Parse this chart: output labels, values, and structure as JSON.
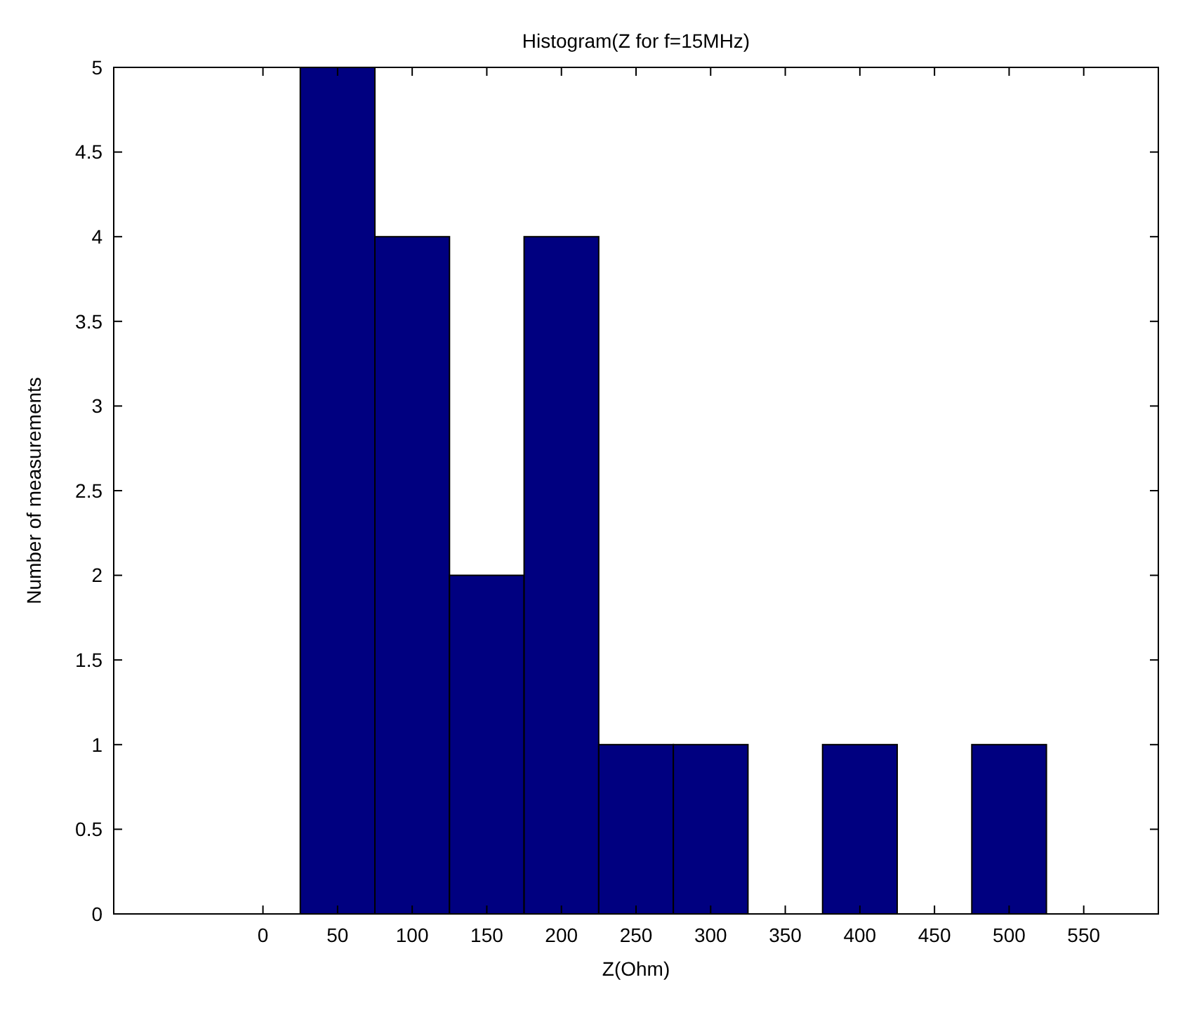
{
  "chart_data": {
    "type": "histogram",
    "title": "Histogram(Z for f=15MHz)",
    "xlabel": "Z(Ohm)",
    "ylabel": "Number of measurements",
    "bins": [
      25,
      75,
      125,
      175,
      225,
      275,
      325,
      375,
      425,
      475,
      525
    ],
    "values": [
      5,
      4,
      2,
      4,
      1,
      1,
      0,
      1,
      0,
      1
    ],
    "color": "#000080",
    "xlim": [
      -100,
      600
    ],
    "xticks": [
      0,
      50,
      100,
      150,
      200,
      250,
      300,
      350,
      400,
      450,
      500,
      550
    ],
    "ylim": [
      0,
      5
    ],
    "yticks": [
      0,
      0.5,
      1,
      1.5,
      2,
      2.5,
      3,
      3.5,
      4,
      4.5,
      5
    ],
    "grid": false
  }
}
